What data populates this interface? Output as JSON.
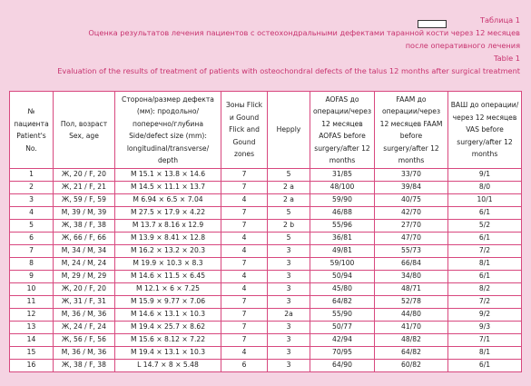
{
  "caption": {
    "label_ru": "Таблица 1",
    "title_ru": [
      "Оценка результатов лечения пациентов с остеохондральными дефектами таранной кости через 12 месяцев",
      "после оперативного лечения"
    ],
    "label_en": "Table 1",
    "title_en": "Evaluation of the results of treatment of patients with osteochondral defects of the talus 12 months after surgical treatment"
  },
  "table": {
    "header": [
      "№ пациента Patient's No.",
      "Пол, возраст Sex, age",
      "Сторона/размер дефекта (мм): продольно/ поперечно/глубина Side/defect size (mm): longitudinal/transverse/ depth",
      "Зоны Flick и Gound Flick and Gound zones",
      "Hepply",
      "AOFAS до операции/через 12 месяцев AOFAS before surgery/after 12 months",
      "FAAM до операции/через 12 месяцев FAAM before surgery/after 12 months",
      "ВАШ до операции/через 12 месяцев VAS before surgery/after 12 months"
    ],
    "rows": [
      [
        "1",
        "Ж, 20 / F, 20",
        "M 15.1 × 13.8 × 14.6",
        "7",
        "5",
        "31/85",
        "33/70",
        "9/1"
      ],
      [
        "2",
        "Ж, 21 / F, 21",
        "M 14.5 × 11.1 × 13.7",
        "7",
        "2 a",
        "48/100",
        "39/84",
        "8/0"
      ],
      [
        "3",
        "Ж, 59 / F, 59",
        "M 6.94 × 6.5 × 7.04",
        "4",
        "2 a",
        "59/90",
        "40/75",
        "10/1"
      ],
      [
        "4",
        "M, 39 / M, 39",
        "M 27.5 × 17.9 × 4.22",
        "7",
        "5",
        "46/88",
        "42/70",
        "6/1"
      ],
      [
        "5",
        "Ж, 38 / F, 38",
        "M 13.7 x 8.16 x 12.9",
        "7",
        "2 b",
        "55/96",
        "27/70",
        "5/2"
      ],
      [
        "6",
        "Ж, 66 / F, 66",
        "M 13.9 × 8.41 × 12.8",
        "4",
        "5",
        "36/81",
        "47/70",
        "6/1"
      ],
      [
        "7",
        "M, 34 / M, 34",
        "M 16.2 × 13.2 × 20.3",
        "4",
        "3",
        "49/81",
        "55/73",
        "7/2"
      ],
      [
        "8",
        "M, 24 / M, 24",
        "M 19.9 × 10.3 × 8.3",
        "7",
        "3",
        "59/100",
        "66/84",
        "8/1"
      ],
      [
        "9",
        "M, 29 / M, 29",
        "M 14.6 × 11.5 × 6.45",
        "4",
        "3",
        "50/94",
        "34/80",
        "6/1"
      ],
      [
        "10",
        "Ж, 20 / F, 20",
        "M 12.1 × 6 × 7.25",
        "4",
        "3",
        "45/80",
        "48/71",
        "8/2"
      ],
      [
        "11",
        "Ж, 31 / F, 31",
        "M 15.9 × 9.77 × 7.06",
        "7",
        "3",
        "64/82",
        "52/78",
        "7/2"
      ],
      [
        "12",
        "M, 36 / M, 36",
        "M 14.6 × 13.1 × 10.3",
        "7",
        "2a",
        "55/90",
        "44/80",
        "9/2"
      ],
      [
        "13",
        "Ж, 24 / F, 24",
        "M 19.4 × 25.7 × 8.62",
        "7",
        "3",
        "50/77",
        "41/70",
        "9/3"
      ],
      [
        "14",
        "Ж, 56 / F, 56",
        "M 15.6 × 8.12 × 7.22",
        "7",
        "3",
        "42/94",
        "48/82",
        "7/1"
      ],
      [
        "15",
        "M, 36 / M, 36",
        "M 19.4 × 13.1 × 10.3",
        "4",
        "3",
        "70/95",
        "64/82",
        "8/1"
      ],
      [
        "16",
        "Ж, 38 / F, 38",
        "L 14.7 × 8 × 5.48",
        "6",
        "3",
        "64/90",
        "60/82",
        "6/1"
      ]
    ]
  }
}
